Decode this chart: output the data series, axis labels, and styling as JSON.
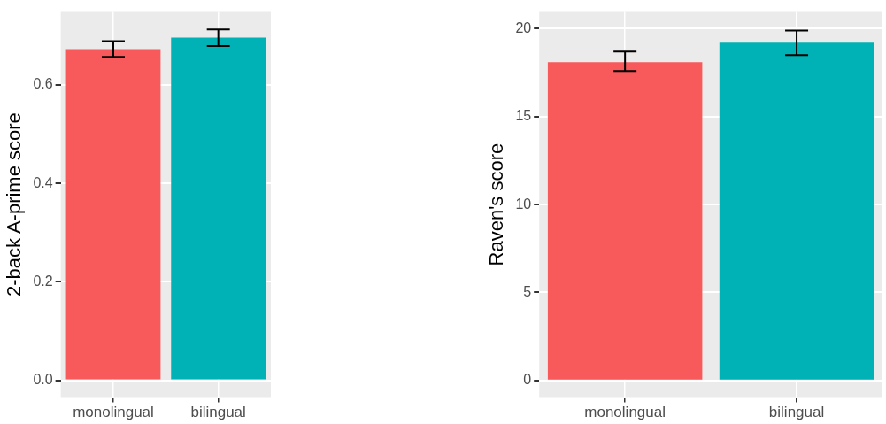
{
  "chart_data": [
    {
      "type": "bar",
      "ylabel": "2-back A-prime score",
      "categories": [
        "monolingual",
        "bilingual"
      ],
      "colors": [
        "#f8595a",
        "#00b2b5"
      ],
      "values": [
        0.673,
        0.696
      ],
      "errors": [
        0.016,
        0.017
      ],
      "ylim": [
        -0.036,
        0.75
      ],
      "yticks": [
        {
          "value": 0,
          "label": "0.0"
        },
        0.2,
        0.4,
        0.6
      ],
      "grid": true,
      "legend": false
    },
    {
      "type": "bar",
      "ylabel": "Raven's score",
      "categories": [
        "monolingual",
        "bilingual"
      ],
      "colors": [
        "#f8595a",
        "#00b2b5"
      ],
      "values": [
        18.1,
        19.2
      ],
      "errors": [
        [
          17.6,
          18.7
        ],
        [
          18.5,
          19.9
        ]
      ],
      "ylim": [
        -1,
        21
      ],
      "yticks": [
        0,
        5,
        10,
        15,
        20
      ],
      "grid": true,
      "legend": false
    }
  ]
}
